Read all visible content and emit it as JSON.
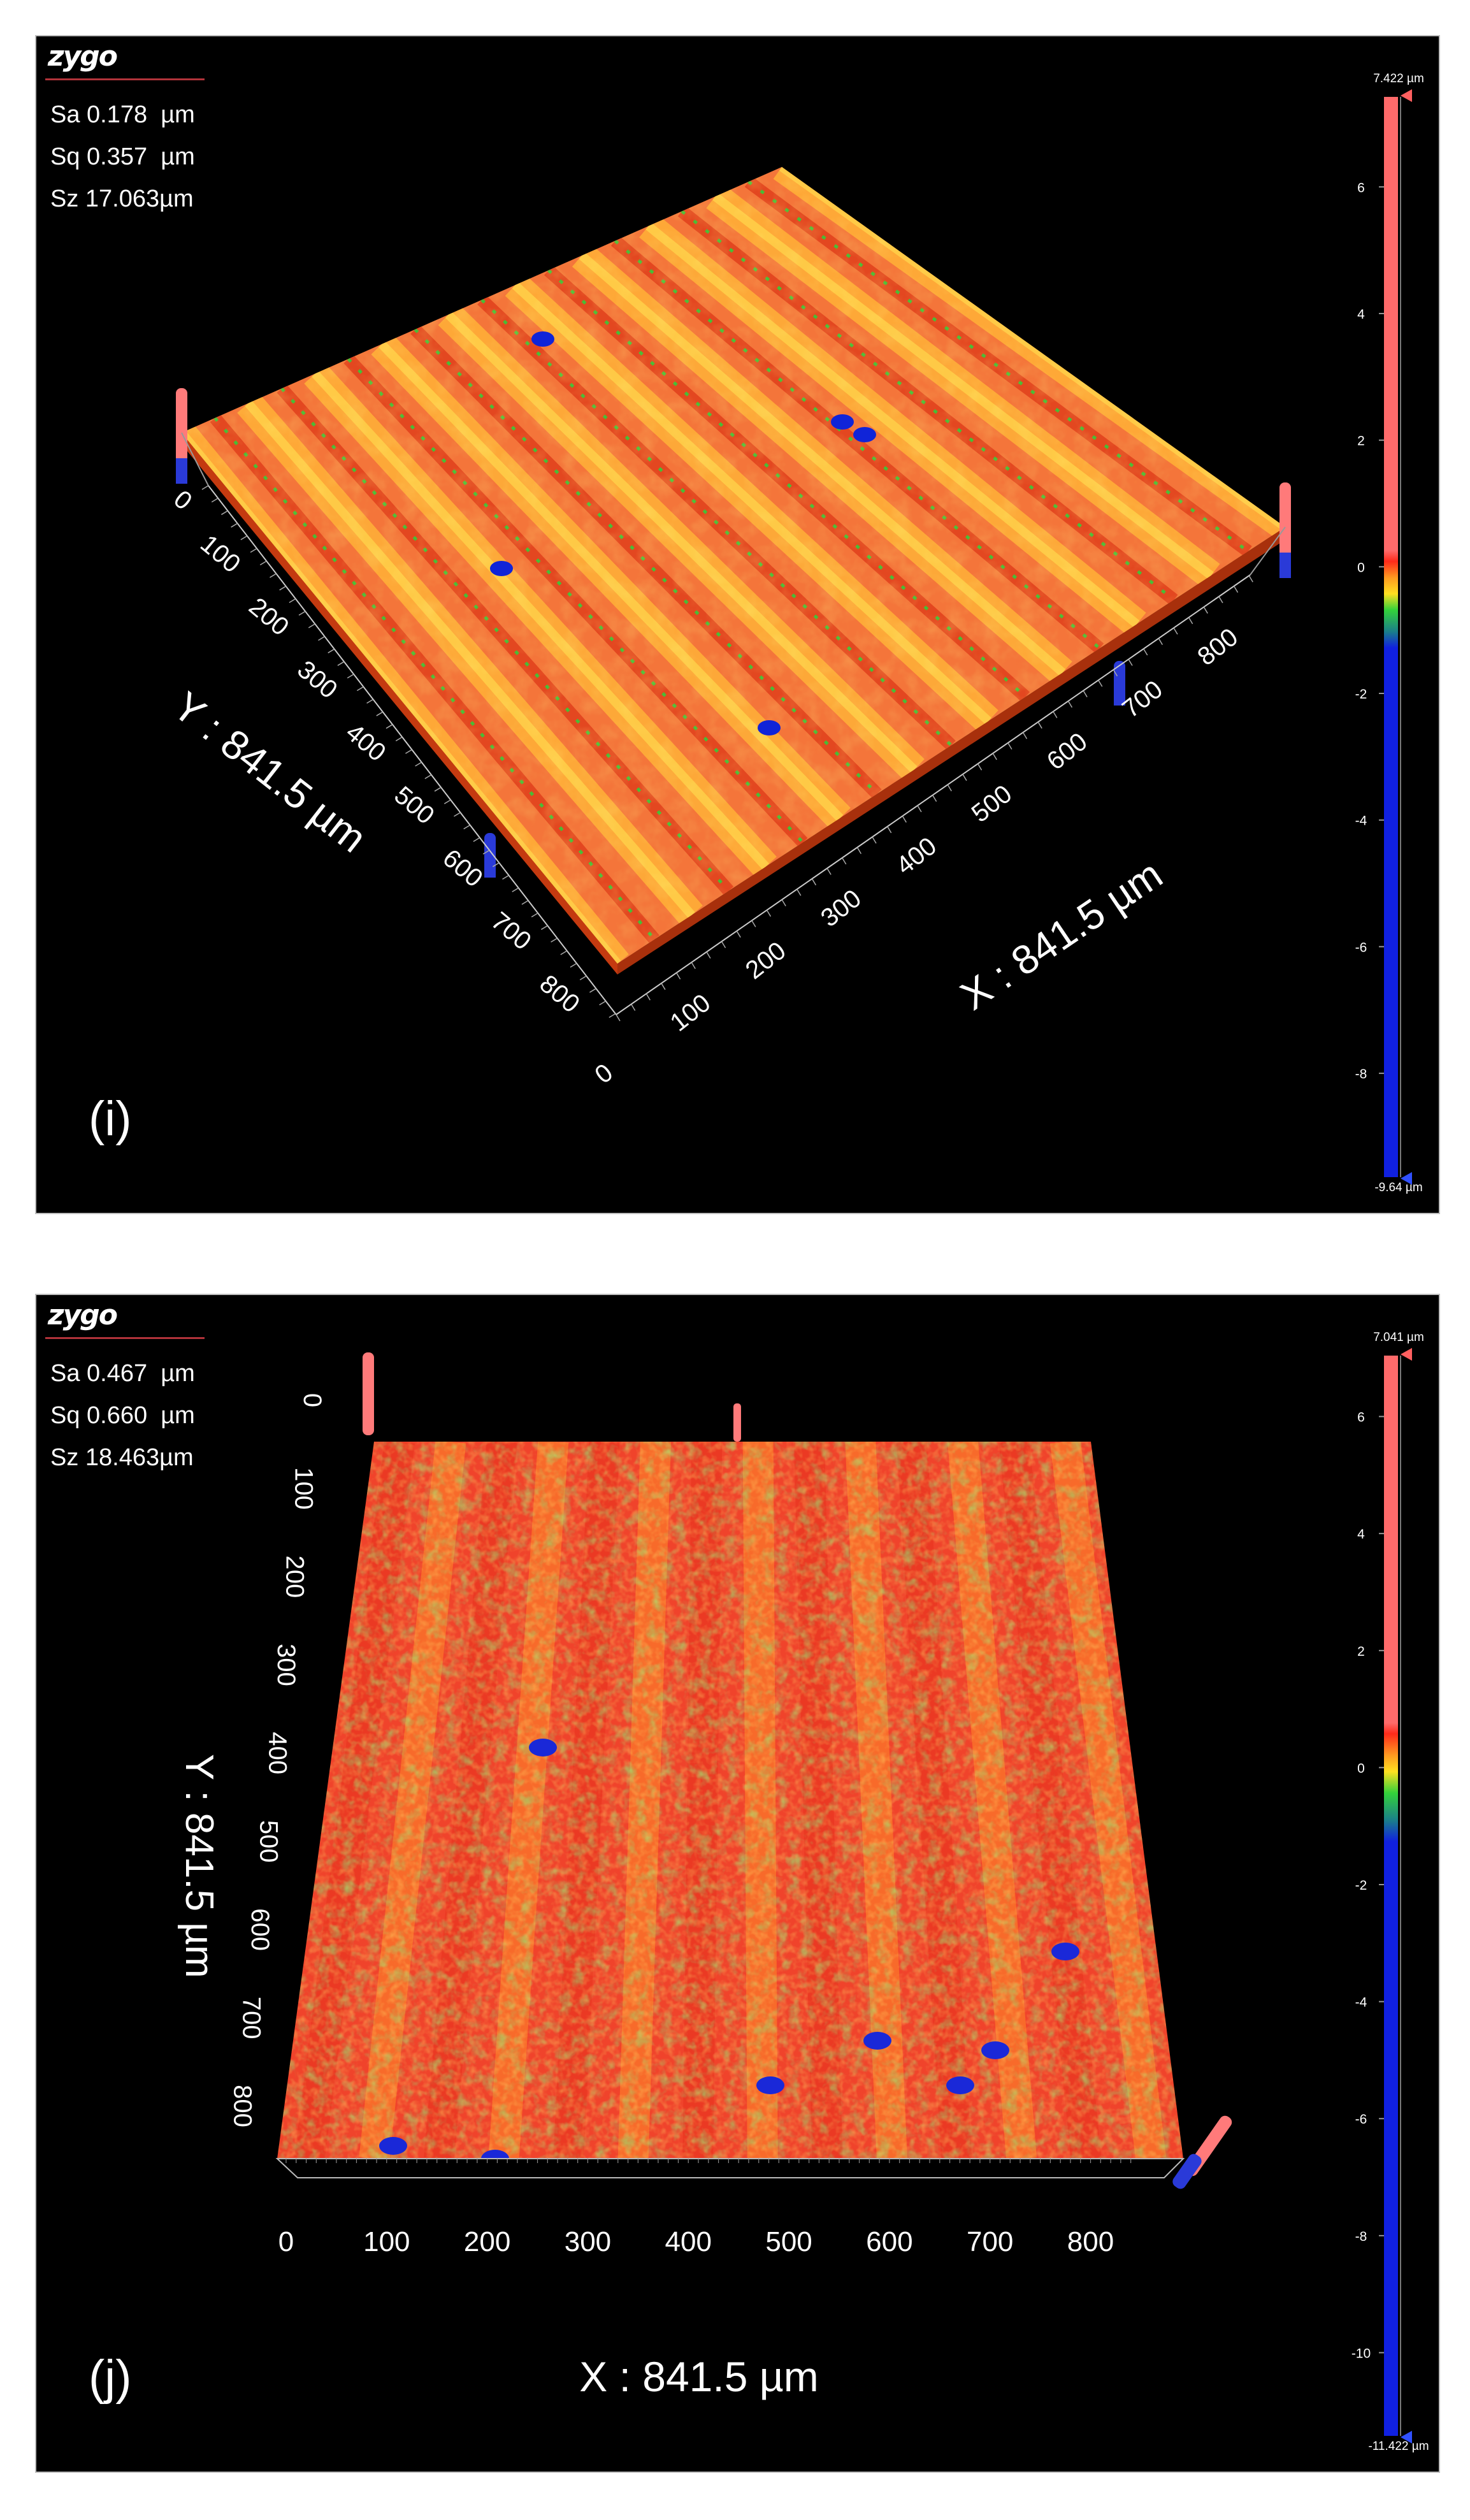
{
  "panels": [
    {
      "logo": "zygo",
      "stats": {
        "sa": "Sa 0.178  µm",
        "sq": "Sq 0.357  µm",
        "sz": "Sz 17.063µm"
      },
      "label": "(i)",
      "colorbar": {
        "max": "7.422 µm",
        "min": "-9.64 µm"
      }
    },
    {
      "logo": "zygo",
      "stats": {
        "sa": "Sa 0.467  µm",
        "sq": "Sq 0.660  µm",
        "sz": "Sz 18.463µm"
      },
      "label": "(j)",
      "colorbar": {
        "max": "7.041 µm",
        "min": "-11.422 µm"
      }
    }
  ],
  "chart_data": [
    {
      "type": "surface-3d",
      "xlabel": "X : 841.5 µm",
      "ylabel": "Y : 841.5 µm",
      "x_ticks": [
        "0",
        "100",
        "200",
        "300",
        "400",
        "500",
        "600",
        "700",
        "800"
      ],
      "y_ticks": [
        "0",
        "100",
        "200",
        "300",
        "400",
        "500",
        "600",
        "700",
        "800"
      ],
      "xlim": [
        0,
        841.5
      ],
      "ylim": [
        0,
        841.5
      ],
      "zlim": [
        -9.64,
        7.422
      ],
      "colorbar_ticks": [
        6,
        4,
        2,
        0,
        -2,
        -4,
        -6,
        -8
      ],
      "colorbar_tick_labels": [
        "6",
        "4",
        "2",
        "0",
        "-2",
        "-4",
        "-6",
        "-8"
      ],
      "surface_colors": {
        "high": "#f4753a",
        "mid": "#ffcc33",
        "low": "#2fd13a",
        "deep": "#1024d8"
      }
    },
    {
      "type": "surface-3d",
      "xlabel": "X : 841.5 µm",
      "ylabel": "Y : 841.5 µm",
      "x_ticks": [
        "0",
        "100",
        "200",
        "300",
        "400",
        "500",
        "600",
        "700",
        "800"
      ],
      "y_ticks": [
        "0",
        "100",
        "200",
        "300",
        "400",
        "500",
        "600",
        "700",
        "800"
      ],
      "xlim": [
        0,
        841.5
      ],
      "ylim": [
        0,
        841.5
      ],
      "zlim": [
        -11.422,
        7.041
      ],
      "colorbar_ticks": [
        6,
        4,
        2,
        0,
        -2,
        -4,
        -6,
        -8,
        -10
      ],
      "colorbar_tick_labels": [
        "6",
        "4",
        "2",
        "0",
        "-2",
        "-4",
        "-6",
        "-8",
        "-10"
      ],
      "surface_colors": {
        "high": "#f0432b",
        "mid": "#ffa033",
        "low": "#3cd83a",
        "deep": "#1a28d8"
      }
    }
  ]
}
